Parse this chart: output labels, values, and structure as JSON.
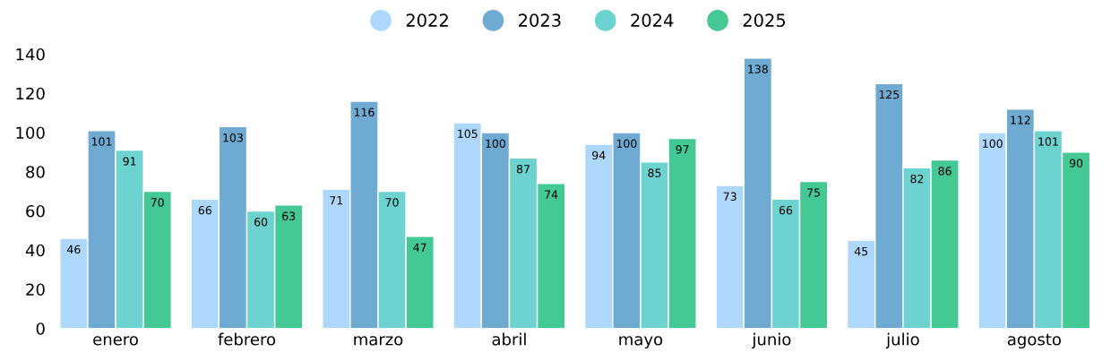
{
  "chart_data": {
    "type": "bar",
    "categories": [
      "enero",
      "febrero",
      "marzo",
      "abril",
      "mayo",
      "junio",
      "julio",
      "agosto"
    ],
    "series": [
      {
        "name": "2022",
        "color": "#aed8fb",
        "values": [
          46,
          66,
          71,
          105,
          94,
          73,
          45,
          100
        ]
      },
      {
        "name": "2023",
        "color": "#6eaad2",
        "values": [
          101,
          103,
          116,
          100,
          100,
          138,
          125,
          112
        ]
      },
      {
        "name": "2024",
        "color": "#6dd3d0",
        "values": [
          91,
          60,
          70,
          87,
          85,
          66,
          82,
          101
        ]
      },
      {
        "name": "2025",
        "color": "#44c894",
        "values": [
          70,
          63,
          47,
          74,
          97,
          75,
          86,
          90
        ]
      }
    ],
    "ylim": [
      0,
      140
    ],
    "yticks": [
      0,
      20,
      40,
      60,
      80,
      100,
      120,
      140
    ],
    "grid": false,
    "legend": "top",
    "data_labels": true
  }
}
